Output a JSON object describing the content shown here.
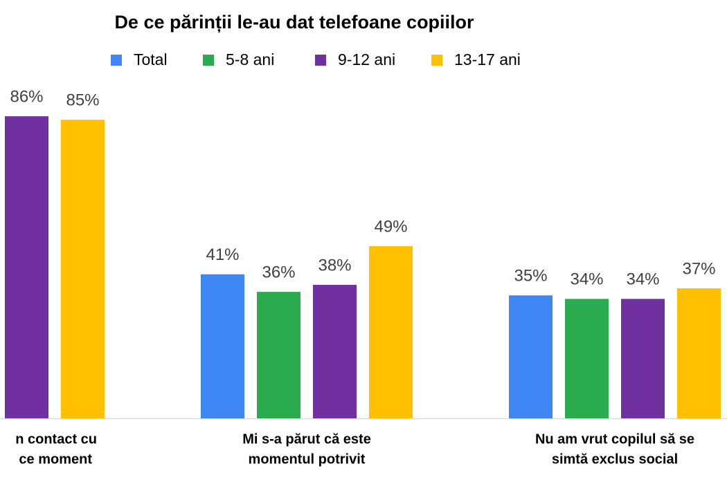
{
  "chart_data": {
    "type": "bar",
    "title": "De ce părinții le-au dat telefoane copiilor",
    "categories": [
      [
        "n contact cu",
        "ce moment"
      ],
      [
        "Mi s-a părut că este",
        "momentul potrivit"
      ],
      [
        "Nu am vrut copilul să se",
        "simtă exclus social"
      ]
    ],
    "series": [
      {
        "name": "Total",
        "color": "#3f87f5",
        "values": [
          null,
          41,
          35
        ]
      },
      {
        "name": "5-8 ani",
        "color": "#2bab4f",
        "values": [
          null,
          36,
          34
        ]
      },
      {
        "name": "9-12 ani",
        "color": "#7030a0",
        "values": [
          86,
          38,
          34
        ]
      },
      {
        "name": "13-17 ani",
        "color": "#ffc000",
        "values": [
          85,
          49,
          37
        ]
      }
    ],
    "value_labels": [
      [
        null,
        "41%",
        "35%"
      ],
      [
        null,
        "36%",
        "34%"
      ],
      [
        "86%",
        "38%",
        "34%"
      ],
      [
        "85%",
        "49%",
        "37%"
      ]
    ],
    "ylim": [
      0,
      100
    ],
    "legend": "top"
  }
}
